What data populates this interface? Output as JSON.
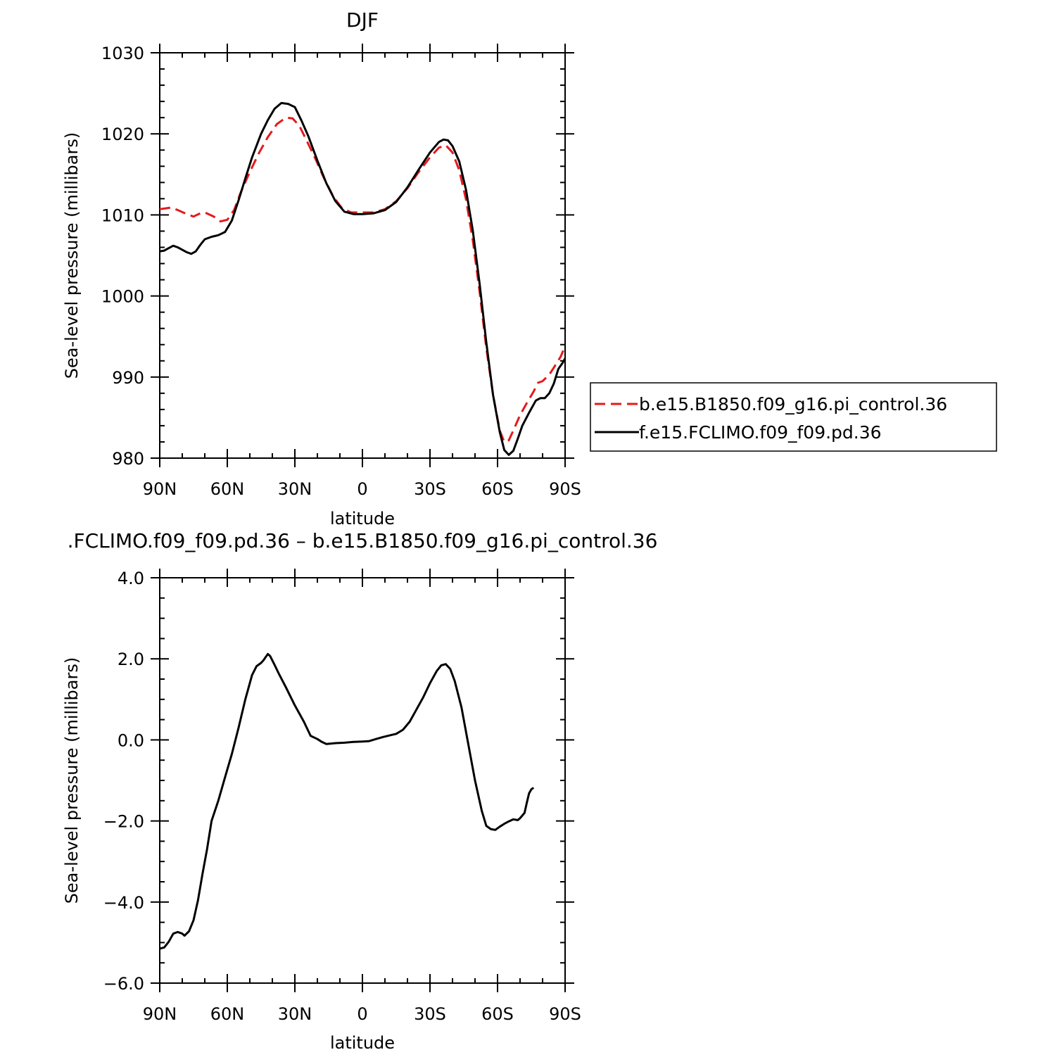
{
  "chart_data": [
    {
      "type": "line",
      "title": "DJF",
      "xlabel": "latitude",
      "ylabel": "Sea-level pressure (millibars)",
      "xlim": [
        90,
        -90
      ],
      "ylim": [
        980,
        1030
      ],
      "xticks": [
        90,
        60,
        30,
        0,
        -30,
        -60,
        -90
      ],
      "xtick_labels": [
        "90N",
        "60N",
        "30N",
        "0",
        "30S",
        "60S",
        "90S"
      ],
      "yticks": [
        980,
        990,
        1000,
        1010,
        1020,
        1030
      ],
      "ytick_labels": [
        "980",
        "990",
        "1000",
        "1010",
        "1020",
        "1030"
      ],
      "legend": {
        "placement": "right"
      },
      "series": [
        {
          "name": "b.e15.B1850.f09_g16.pi_control.36",
          "color": "#e41a1c",
          "style": "dashed",
          "points": [
            [
              90,
              1010.7
            ],
            [
              85,
              1010.9
            ],
            [
              82,
              1010.6
            ],
            [
              78,
              1010.1
            ],
            [
              75,
              1009.8
            ],
            [
              72,
              1010.2
            ],
            [
              70,
              1010.3
            ],
            [
              66,
              1009.8
            ],
            [
              63,
              1009.2
            ],
            [
              60,
              1009.4
            ],
            [
              57,
              1010.6
            ],
            [
              54,
              1012.8
            ],
            [
              50,
              1015.3
            ],
            [
              46,
              1017.6
            ],
            [
              42,
              1019.6
            ],
            [
              38,
              1021.2
            ],
            [
              34,
              1022.0
            ],
            [
              31,
              1021.9
            ],
            [
              28,
              1021.0
            ],
            [
              25,
              1019.3
            ],
            [
              21,
              1017.0
            ],
            [
              17,
              1014.5
            ],
            [
              13,
              1012.3
            ],
            [
              9,
              1010.8
            ],
            [
              5,
              1010.3
            ],
            [
              0,
              1010.3
            ],
            [
              -5,
              1010.3
            ],
            [
              -10,
              1010.7
            ],
            [
              -15,
              1011.7
            ],
            [
              -20,
              1013.3
            ],
            [
              -25,
              1015.3
            ],
            [
              -30,
              1017.1
            ],
            [
              -34,
              1018.3
            ],
            [
              -37,
              1018.6
            ],
            [
              -40,
              1017.7
            ],
            [
              -43,
              1015.5
            ],
            [
              -46,
              1011.9
            ],
            [
              -49,
              1006.9
            ],
            [
              -52,
              1000.6
            ],
            [
              -55,
              993.6
            ],
            [
              -58,
              987.8
            ],
            [
              -61,
              983.4
            ],
            [
              -63,
              982.0
            ],
            [
              -65,
              982.2
            ],
            [
              -67,
              983.4
            ],
            [
              -70,
              985.3
            ],
            [
              -73,
              986.8
            ],
            [
              -76,
              988.2
            ],
            [
              -78,
              989.3
            ],
            [
              -80,
              989.5
            ],
            [
              -83,
              990.3
            ],
            [
              -86,
              991.6
            ],
            [
              -88,
              992.5
            ],
            [
              -90,
              993.8
            ]
          ]
        },
        {
          "name": "f.e15.FCLIMO.f09_f09.pd.36",
          "color": "#000000",
          "style": "solid",
          "points": [
            [
              90,
              1005.5
            ],
            [
              88,
              1005.6
            ],
            [
              86,
              1005.9
            ],
            [
              84,
              1006.2
            ],
            [
              82,
              1006.0
            ],
            [
              80,
              1005.7
            ],
            [
              78,
              1005.4
            ],
            [
              76,
              1005.2
            ],
            [
              74,
              1005.5
            ],
            [
              72,
              1006.3
            ],
            [
              70,
              1007.0
            ],
            [
              67,
              1007.3
            ],
            [
              64,
              1007.5
            ],
            [
              61,
              1007.9
            ],
            [
              58,
              1009.3
            ],
            [
              55,
              1011.8
            ],
            [
              52,
              1014.5
            ],
            [
              49,
              1017.1
            ],
            [
              45,
              1020.0
            ],
            [
              42,
              1021.7
            ],
            [
              39,
              1023.1
            ],
            [
              36,
              1023.8
            ],
            [
              33,
              1023.7
            ],
            [
              30,
              1023.3
            ],
            [
              27,
              1021.6
            ],
            [
              24,
              1019.7
            ],
            [
              20,
              1016.7
            ],
            [
              16,
              1013.9
            ],
            [
              12,
              1011.7
            ],
            [
              8,
              1010.4
            ],
            [
              4,
              1010.1
            ],
            [
              0,
              1010.1
            ],
            [
              -5,
              1010.2
            ],
            [
              -10,
              1010.6
            ],
            [
              -15,
              1011.6
            ],
            [
              -20,
              1013.4
            ],
            [
              -25,
              1015.6
            ],
            [
              -30,
              1017.7
            ],
            [
              -34,
              1019.0
            ],
            [
              -36,
              1019.3
            ],
            [
              -38,
              1019.2
            ],
            [
              -40,
              1018.5
            ],
            [
              -43,
              1016.6
            ],
            [
              -46,
              1013.1
            ],
            [
              -49,
              1008.1
            ],
            [
              -52,
              1001.6
            ],
            [
              -55,
              994.3
            ],
            [
              -58,
              987.8
            ],
            [
              -61,
              983.2
            ],
            [
              -63,
              981.0
            ],
            [
              -65,
              980.4
            ],
            [
              -67,
              980.9
            ],
            [
              -69,
              982.4
            ],
            [
              -71,
              984.0
            ],
            [
              -74,
              985.6
            ],
            [
              -77,
              987.1
            ],
            [
              -79,
              987.4
            ],
            [
              -81,
              987.4
            ],
            [
              -83,
              988.0
            ],
            [
              -85,
              989.2
            ],
            [
              -87,
              991.0
            ],
            [
              -89,
              991.8
            ],
            [
              -90,
              992.3
            ]
          ]
        }
      ]
    },
    {
      "type": "line",
      "title": ".FCLIMO.f09_f09.pd.36 – b.e15.B1850.f09_g16.pi_control.36",
      "xlabel": "latitude",
      "ylabel": "Sea-level pressure (millibars)",
      "xlim": [
        90,
        -90
      ],
      "ylim": [
        -6.0,
        4.0
      ],
      "xticks": [
        90,
        60,
        30,
        0,
        -30,
        -60,
        -90
      ],
      "xtick_labels": [
        "90N",
        "60N",
        "30N",
        "0",
        "30S",
        "60S",
        "90S"
      ],
      "yticks": [
        -6.0,
        -4.0,
        -2.0,
        0.0,
        2.0,
        4.0
      ],
      "ytick_labels": [
        "−6.0",
        "−4.0",
        "−2.0",
        "0.0",
        "2.0",
        "4.0"
      ],
      "series": [
        {
          "color": "#000000",
          "style": "solid",
          "points": [
            [
              90,
              -5.15
            ],
            [
              88,
              -5.12
            ],
            [
              86,
              -4.98
            ],
            [
              84,
              -4.78
            ],
            [
              82,
              -4.74
            ],
            [
              80,
              -4.78
            ],
            [
              79,
              -4.83
            ],
            [
              77,
              -4.72
            ],
            [
              75,
              -4.45
            ],
            [
              73,
              -3.95
            ],
            [
              71,
              -3.3
            ],
            [
              69,
              -2.7
            ],
            [
              67,
              -2.0
            ],
            [
              64,
              -1.5
            ],
            [
              61,
              -0.92
            ],
            [
              58,
              -0.35
            ],
            [
              55,
              0.3
            ],
            [
              52,
              1.0
            ],
            [
              49,
              1.6
            ],
            [
              47,
              1.82
            ],
            [
              45,
              1.9
            ],
            [
              44,
              1.96
            ],
            [
              42,
              2.12
            ],
            [
              41,
              2.07
            ],
            [
              39,
              1.85
            ],
            [
              37,
              1.62
            ],
            [
              34,
              1.3
            ],
            [
              30,
              0.85
            ],
            [
              26,
              0.45
            ],
            [
              23,
              0.1
            ],
            [
              20,
              0.02
            ],
            [
              18,
              -0.05
            ],
            [
              16,
              -0.1
            ],
            [
              12,
              -0.08
            ],
            [
              8,
              -0.07
            ],
            [
              4,
              -0.05
            ],
            [
              0,
              -0.04
            ],
            [
              -3,
              -0.03
            ],
            [
              -6,
              0.02
            ],
            [
              -9,
              0.07
            ],
            [
              -12,
              0.11
            ],
            [
              -15,
              0.15
            ],
            [
              -18,
              0.25
            ],
            [
              -21,
              0.45
            ],
            [
              -24,
              0.75
            ],
            [
              -27,
              1.05
            ],
            [
              -30,
              1.4
            ],
            [
              -33,
              1.7
            ],
            [
              -35,
              1.84
            ],
            [
              -37,
              1.87
            ],
            [
              -39,
              1.75
            ],
            [
              -41,
              1.45
            ],
            [
              -44,
              0.8
            ],
            [
              -47,
              -0.1
            ],
            [
              -50,
              -1.0
            ],
            [
              -53,
              -1.75
            ],
            [
              -55,
              -2.12
            ],
            [
              -57,
              -2.2
            ],
            [
              -59,
              -2.22
            ],
            [
              -61,
              -2.14
            ],
            [
              -63,
              -2.07
            ],
            [
              -65,
              -2.01
            ],
            [
              -67,
              -1.96
            ],
            [
              -69,
              -1.98
            ],
            [
              -70,
              -1.93
            ],
            [
              -72,
              -1.8
            ],
            [
              -73,
              -1.55
            ],
            [
              -74,
              -1.32
            ],
            [
              -75,
              -1.22
            ],
            [
              -76,
              -1.18
            ]
          ]
        }
      ]
    }
  ]
}
